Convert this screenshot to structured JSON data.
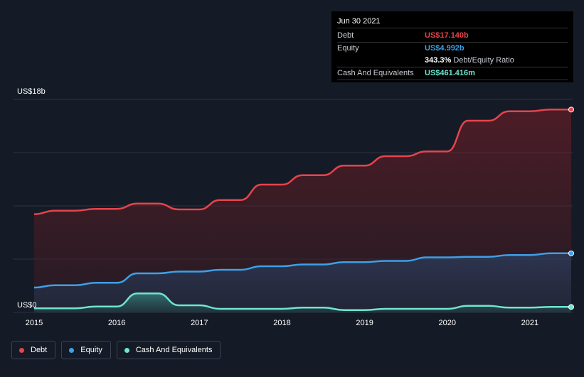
{
  "tooltip": {
    "date": "Jun 30 2021",
    "rows": [
      {
        "label": "Debt",
        "value": "US$17.140b",
        "color": "#e5444c"
      },
      {
        "label": "Equity",
        "value": "US$4.992b",
        "color": "#3da0e8"
      },
      {
        "ratio_value": "343.3%",
        "ratio_name": "Debt/Equity Ratio"
      },
      {
        "label": "Cash And Equivalents",
        "value": "US$461.416m",
        "color": "#6ee6d0"
      }
    ]
  },
  "chart_data": {
    "type": "area",
    "title": "",
    "xlabel": "",
    "ylabel": "",
    "y_unit": "US$b",
    "ylim": [
      0,
      18
    ],
    "y_tick_labels": [
      {
        "value": 18,
        "label": "US$18b"
      },
      {
        "value": 0,
        "label": "US$0"
      }
    ],
    "x_ticks": [
      "2015",
      "2016",
      "2017",
      "2018",
      "2019",
      "2020",
      "2021"
    ],
    "grid": true,
    "legend_position": "bottom-left",
    "x": [
      2015.0,
      2015.25,
      2015.5,
      2015.75,
      2016.0,
      2016.25,
      2016.5,
      2016.75,
      2017.0,
      2017.25,
      2017.5,
      2017.75,
      2018.0,
      2018.25,
      2018.5,
      2018.75,
      2019.0,
      2019.25,
      2019.5,
      2019.75,
      2020.0,
      2020.25,
      2020.5,
      2020.75,
      2021.0,
      2021.25,
      2021.5
    ],
    "series": [
      {
        "name": "Debt",
        "color": "#e5444c",
        "values": [
          8.3,
          8.6,
          8.6,
          8.75,
          8.75,
          9.2,
          9.2,
          8.7,
          8.7,
          9.5,
          9.5,
          10.8,
          10.8,
          11.6,
          11.6,
          12.4,
          12.4,
          13.2,
          13.2,
          13.6,
          13.6,
          16.2,
          16.2,
          17.0,
          17.0,
          17.14,
          17.14
        ]
      },
      {
        "name": "Equity",
        "color": "#3da0e8",
        "values": [
          2.1,
          2.3,
          2.3,
          2.5,
          2.5,
          3.3,
          3.3,
          3.45,
          3.45,
          3.6,
          3.6,
          3.9,
          3.9,
          4.05,
          4.05,
          4.25,
          4.25,
          4.35,
          4.35,
          4.65,
          4.65,
          4.7,
          4.7,
          4.85,
          4.85,
          4.99,
          4.99
        ]
      },
      {
        "name": "Cash And Equivalents",
        "color": "#6ee6d0",
        "values": [
          0.35,
          0.35,
          0.35,
          0.5,
          0.5,
          1.6,
          1.6,
          0.6,
          0.6,
          0.3,
          0.3,
          0.3,
          0.3,
          0.4,
          0.4,
          0.2,
          0.2,
          0.3,
          0.3,
          0.3,
          0.3,
          0.55,
          0.55,
          0.4,
          0.4,
          0.46,
          0.46
        ]
      }
    ]
  }
}
